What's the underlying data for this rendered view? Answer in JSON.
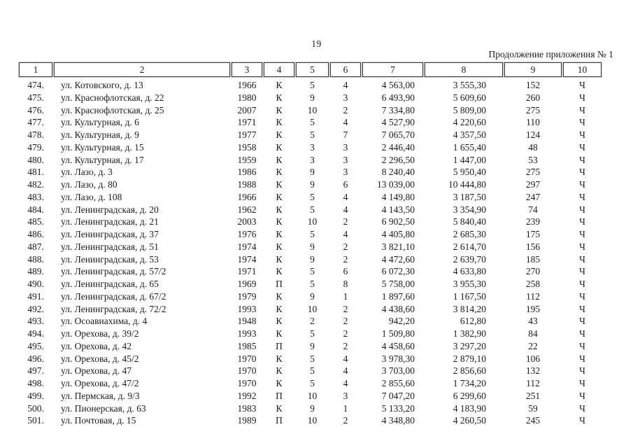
{
  "page": {
    "number": "19",
    "continuation": "Продолжение приложения № 1"
  },
  "table": {
    "column_numbers": [
      "1",
      "2",
      "3",
      "4",
      "5",
      "6",
      "7",
      "8",
      "9",
      "10"
    ],
    "rows": [
      [
        "474.",
        "ул. Котовского, д. 13",
        "1966",
        "К",
        "5",
        "4",
        "4 563,00",
        "3 555,30",
        "152",
        "Ч"
      ],
      [
        "475.",
        "ул. Краснофлотская, д. 22",
        "1980",
        "К",
        "9",
        "3",
        "6 493,90",
        "5 609,60",
        "260",
        "Ч"
      ],
      [
        "476.",
        "ул. Краснофлотская, д. 25",
        "2007",
        "К",
        "10",
        "2",
        "7 334,80",
        "5 809,00",
        "275",
        "Ч"
      ],
      [
        "477.",
        "ул. Культурная, д. 6",
        "1971",
        "К",
        "5",
        "4",
        "4 527,90",
        "4 220,60",
        "110",
        "Ч"
      ],
      [
        "478.",
        "ул. Культурная, д. 9",
        "1977",
        "К",
        "5",
        "7",
        "7 065,70",
        "4 357,50",
        "124",
        "Ч"
      ],
      [
        "479.",
        "ул. Культурная, д. 15",
        "1958",
        "К",
        "3",
        "3",
        "2 446,40",
        "1 655,40",
        "48",
        "Ч"
      ],
      [
        "480.",
        "ул. Культурная, д. 17",
        "1959",
        "К",
        "3",
        "3",
        "2 296,50",
        "1 447,00",
        "53",
        "Ч"
      ],
      [
        "481.",
        "ул. Лазо, д. 3",
        "1986",
        "К",
        "9",
        "3",
        "8 240,40",
        "5 950,40",
        "275",
        "Ч"
      ],
      [
        "482.",
        "ул. Лазо, д. 80",
        "1988",
        "К",
        "9",
        "6",
        "13 039,00",
        "10 444,80",
        "297",
        "Ч"
      ],
      [
        "483.",
        "ул. Лазо, д. 108",
        "1966",
        "К",
        "5",
        "4",
        "4 149,80",
        "3 187,50",
        "247",
        "Ч"
      ],
      [
        "484.",
        "ул. Ленинградская, д. 20",
        "1962",
        "К",
        "5",
        "4",
        "4 143,50",
        "3 354,90",
        "74",
        "Ч"
      ],
      [
        "485.",
        "ул. Ленинградская, д. 21",
        "2003",
        "К",
        "10",
        "2",
        "6 902,50",
        "5 840,40",
        "239",
        "Ч"
      ],
      [
        "486.",
        "ул. Ленинградская, д. 37",
        "1976",
        "К",
        "5",
        "4",
        "4 405,80",
        "2 685,30",
        "175",
        "Ч"
      ],
      [
        "487.",
        "ул. Ленинградская, д. 51",
        "1974",
        "К",
        "9",
        "2",
        "3 821,10",
        "2 614,70",
        "156",
        "Ч"
      ],
      [
        "488.",
        "ул. Ленинградская, д. 53",
        "1974",
        "К",
        "9",
        "2",
        "4 472,60",
        "2 639,70",
        "185",
        "Ч"
      ],
      [
        "489.",
        "ул. Ленинградская, д. 57/2",
        "1971",
        "К",
        "5",
        "6",
        "6 072,30",
        "4 633,80",
        "270",
        "Ч"
      ],
      [
        "490.",
        "ул. Ленинградская, д. 65",
        "1969",
        "П",
        "5",
        "8",
        "5 758,00",
        "3 955,30",
        "258",
        "Ч"
      ],
      [
        "491.",
        "ул. Ленинградская, д. 67/2",
        "1979",
        "К",
        "9",
        "1",
        "1 897,60",
        "1 167,50",
        "112",
        "Ч"
      ],
      [
        "492.",
        "ул. Ленинградская, д. 72/2",
        "1993",
        "К",
        "10",
        "2",
        "4 438,60",
        "3 814,20",
        "195",
        "Ч"
      ],
      [
        "493.",
        "ул. Осоавиахима, д. 4",
        "1948",
        "К",
        "2",
        "2",
        "942,20",
        "612,80",
        "43",
        "Ч"
      ],
      [
        "494.",
        "ул. Орехова, д. 39/2",
        "1993",
        "К",
        "5",
        "2",
        "1 509,80",
        "1 382,90",
        "84",
        "Ч"
      ],
      [
        "495.",
        "ул. Орехова, д. 42",
        "1985",
        "П",
        "9",
        "2",
        "4 458,60",
        "3 297,20",
        "22",
        "Ч"
      ],
      [
        "496.",
        "ул. Орехова, д. 45/2",
        "1970",
        "К",
        "5",
        "4",
        "3 978,30",
        "2 879,10",
        "106",
        "Ч"
      ],
      [
        "497.",
        "ул. Орехова, д. 47",
        "1970",
        "К",
        "5",
        "4",
        "3 703,00",
        "2 856,60",
        "132",
        "Ч"
      ],
      [
        "498.",
        "ул. Орехова, д. 47/2",
        "1970",
        "К",
        "5",
        "4",
        "2 855,60",
        "1 734,20",
        "112",
        "Ч"
      ],
      [
        "499.",
        "ул. Пермская, д. 9/3",
        "1992",
        "П",
        "10",
        "3",
        "7 047,20",
        "6 299,60",
        "251",
        "Ч"
      ],
      [
        "500.",
        "ул. Пионерская, д. 63",
        "1983",
        "К",
        "9",
        "1",
        "5 133,20",
        "4 183,90",
        "59",
        "Ч"
      ],
      [
        "501.",
        "ул. Почтовая, д. 15",
        "1989",
        "П",
        "10",
        "2",
        "4 348,80",
        "4 260,50",
        "245",
        "Ч"
      ]
    ]
  }
}
